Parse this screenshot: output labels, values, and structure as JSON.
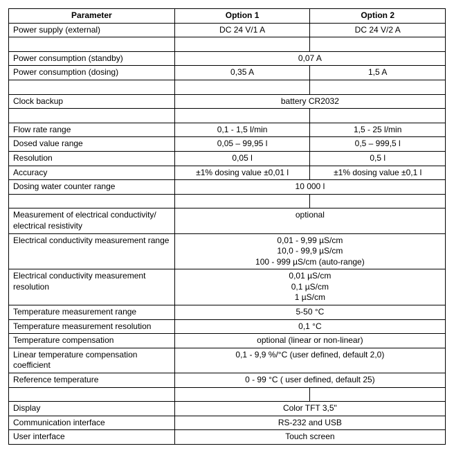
{
  "headers": {
    "parameter": "Parameter",
    "option1": "Option 1",
    "option2": "Option 2"
  },
  "rows": {
    "power_supply": {
      "label": "Power supply (external)",
      "opt1": "DC 24 V/1 A",
      "opt2": "DC 24 V/2 A"
    },
    "power_standby": {
      "label": "Power consumption (standby)",
      "merged": "0,07 A"
    },
    "power_dosing": {
      "label": "Power consumption (dosing)",
      "opt1": "0,35 A",
      "opt2": "1,5 A"
    },
    "clock_backup": {
      "label": "Clock backup",
      "merged": "battery CR2032"
    },
    "flow_rate": {
      "label": "Flow rate range",
      "opt1": "0,1 - 1,5 l/min",
      "opt2": "1,5 - 25 l/min"
    },
    "dosed_value": {
      "label": "Dosed value range",
      "opt1": "0,05 – 99,95 l",
      "opt2": "0,5 – 999,5 l"
    },
    "resolution": {
      "label": "Resolution",
      "opt1": "0,05 l",
      "opt2": "0,5 l"
    },
    "accuracy": {
      "label": "Accuracy",
      "opt1": "±1% dosing value ±0,01 l",
      "opt2": "±1% dosing value ±0,1 l"
    },
    "dosing_counter": {
      "label": "Dosing water counter range",
      "merged": "10 000 l"
    },
    "ec_measure": {
      "label": "Measurement of electrical conductivity/ electrical resistivity",
      "merged": "optional"
    },
    "ec_range": {
      "label": "Electrical conductivity measurement range",
      "line1": "0,01 - 9,99 µS/cm",
      "line2": "10,0 - 99,9 µS/cm",
      "line3": "100 - 999 µS/cm (auto-range)"
    },
    "ec_resolution": {
      "label": "Electrical conductivity measurement resolution",
      "line1": "0,01 µS/cm",
      "line2": "0,1 µS/cm",
      "line3": "1  µS/cm"
    },
    "temp_range": {
      "label": "Temperature measurement range",
      "merged": "5-50 °C"
    },
    "temp_resolution": {
      "label": "Temperature measurement resolution",
      "merged": "0,1 °C"
    },
    "temp_compensation": {
      "label": "Temperature compensation",
      "merged": "optional (linear or non-linear)"
    },
    "linear_coef": {
      "label": "Linear temperature compensation coefficient",
      "merged": "0,1 - 9,9 %/°C (user defined, default 2,0)"
    },
    "ref_temp": {
      "label": "Reference temperature",
      "merged": "0 - 99 °C ( user defined, default 25)"
    },
    "display": {
      "label": "Display",
      "merged": "Color TFT 3,5\""
    },
    "comm_interface": {
      "label": "Communication interface",
      "merged": "RS-232 and USB"
    },
    "user_interface": {
      "label": "User interface",
      "merged": "Touch screen"
    }
  }
}
